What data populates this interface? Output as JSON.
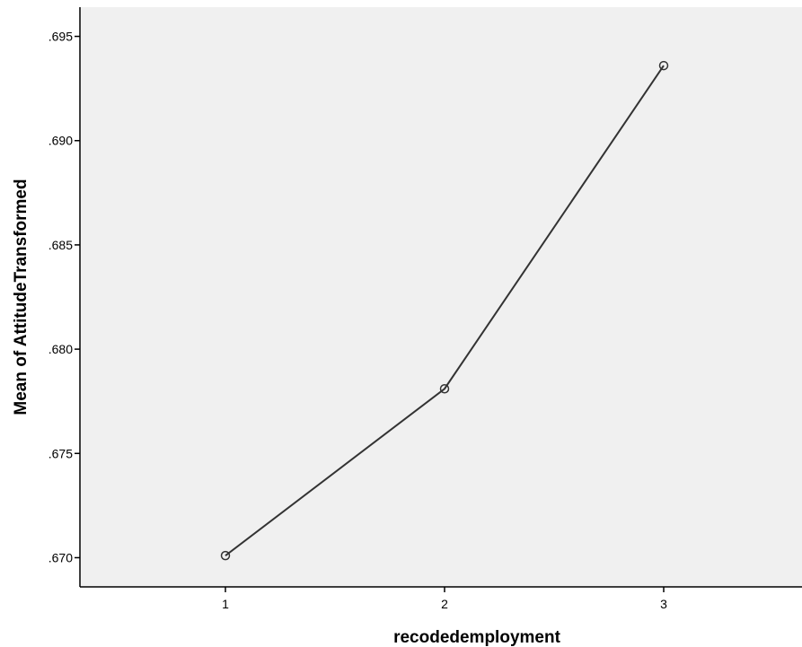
{
  "chart_data": {
    "type": "line",
    "title": "",
    "xlabel": "recodedemployment",
    "ylabel": "Mean of AttitudeTransformed",
    "categories": [
      "1",
      "2",
      "3"
    ],
    "series": [
      {
        "values": [
          0.6701,
          0.6781,
          0.6936
        ]
      }
    ],
    "y_ticks": [
      0.67,
      0.675,
      0.68,
      0.685,
      0.69,
      0.695
    ],
    "y_tick_labels": [
      ".670",
      ".675",
      ".680",
      ".685",
      ".690",
      ".695"
    ],
    "ylim": [
      0.6686,
      0.6964
    ],
    "grid": false,
    "legend": "none",
    "colors": {
      "plot_background": "#f0f0f0",
      "line": "#333333",
      "marker_edge": "#333333",
      "axis": "#000000"
    }
  }
}
